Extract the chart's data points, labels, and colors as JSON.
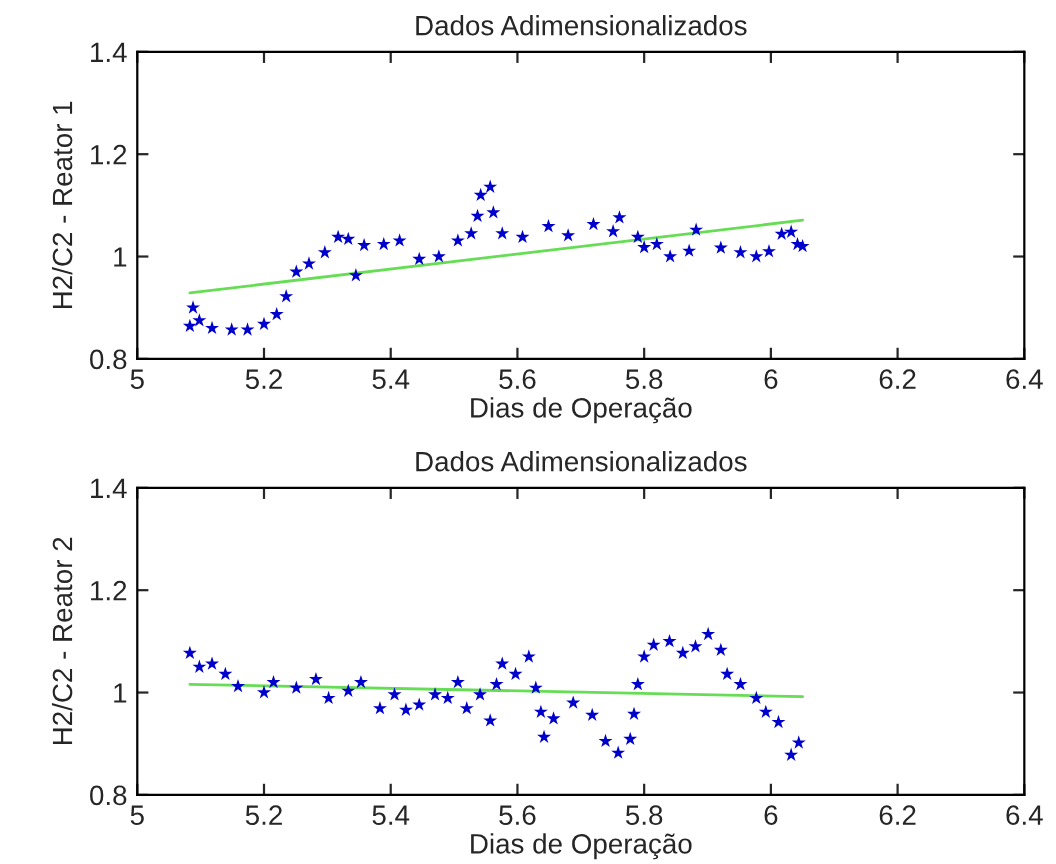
{
  "chart_data": [
    {
      "type": "scatter",
      "title": "Dados Adimensionalizados",
      "xlabel": "Dias de Operação",
      "ylabel": "H2/C2 - Reator 1",
      "xlim": [
        5,
        6.4
      ],
      "xticks": [
        5,
        5.2,
        5.4,
        5.6,
        5.8,
        6,
        6.2,
        6.4
      ],
      "ylim": [
        0.8,
        1.4
      ],
      "yticks": [
        0.8,
        1,
        1.2,
        1.4
      ],
      "grid": false,
      "legend": false,
      "series": [
        {
          "marker": "star",
          "color": "#0000cc",
          "x": [
            5.083,
            5.088,
            5.098,
            5.118,
            5.149,
            5.174,
            5.2,
            5.22,
            5.235,
            5.251,
            5.271,
            5.296,
            5.317,
            5.333,
            5.345,
            5.358,
            5.389,
            5.414,
            5.445,
            5.476,
            5.506,
            5.527,
            5.537,
            5.542,
            5.557,
            5.562,
            5.576,
            5.608,
            5.649,
            5.68,
            5.72,
            5.751,
            5.761,
            5.79,
            5.8,
            5.82,
            5.841,
            5.871,
            5.882,
            5.921,
            5.952,
            5.977,
            5.997,
            6.017,
            6.032,
            6.042,
            6.05
          ],
          "values": [
            0.864,
            0.9,
            0.875,
            0.86,
            0.857,
            0.857,
            0.868,
            0.887,
            0.922,
            0.97,
            0.986,
            1.008,
            1.038,
            1.034,
            0.963,
            1.022,
            1.024,
            1.031,
            0.995,
            1.0,
            1.031,
            1.045,
            1.079,
            1.12,
            1.136,
            1.086,
            1.045,
            1.038,
            1.059,
            1.041,
            1.063,
            1.049,
            1.076,
            1.038,
            1.018,
            1.024,
            1.0,
            1.011,
            1.052,
            1.017,
            1.008,
            1.0,
            1.01,
            1.044,
            1.048,
            1.024,
            1.02
          ]
        },
        {
          "type": "line",
          "color": "#66dd55",
          "x": [
            5.083,
            6.05
          ],
          "values": [
            0.929,
            1.071
          ]
        }
      ]
    },
    {
      "type": "scatter",
      "title": "Dados Adimensionalizados",
      "xlabel": "Dias de Operação",
      "ylabel": "H2/C2 - Reator 2",
      "xlim": [
        5,
        6.4
      ],
      "xticks": [
        5,
        5.2,
        5.4,
        5.6,
        5.8,
        6,
        6.2,
        6.4
      ],
      "ylim": [
        0.8,
        1.4
      ],
      "yticks": [
        0.8,
        1,
        1.2,
        1.4
      ],
      "grid": false,
      "legend": false,
      "series": [
        {
          "marker": "star",
          "color": "#0000cc",
          "x": [
            5.083,
            5.098,
            5.118,
            5.139,
            5.159,
            5.2,
            5.215,
            5.251,
            5.282,
            5.302,
            5.333,
            5.353,
            5.383,
            5.406,
            5.424,
            5.445,
            5.47,
            5.49,
            5.506,
            5.52,
            5.541,
            5.557,
            5.567,
            5.576,
            5.597,
            5.618,
            5.629,
            5.637,
            5.642,
            5.657,
            5.688,
            5.718,
            5.739,
            5.759,
            5.778,
            5.784,
            5.79,
            5.8,
            5.815,
            5.84,
            5.861,
            5.881,
            5.901,
            5.921,
            5.931,
            5.952,
            5.977,
            5.992,
            6.012,
            6.032,
            6.044
          ],
          "values": [
            1.077,
            1.05,
            1.056,
            1.036,
            1.012,
            1.0,
            1.02,
            1.009,
            1.026,
            0.989,
            1.003,
            1.02,
            0.969,
            0.996,
            0.966,
            0.976,
            0.996,
            0.989,
            1.02,
            0.969,
            0.996,
            0.945,
            1.016,
            1.056,
            1.036,
            1.07,
            1.009,
            0.962,
            0.913,
            0.949,
            0.98,
            0.956,
            0.905,
            0.882,
            0.909,
            0.958,
            1.016,
            1.07,
            1.093,
            1.1,
            1.077,
            1.09,
            1.114,
            1.083,
            1.036,
            1.016,
            0.989,
            0.962,
            0.942,
            0.878,
            0.902
          ]
        },
        {
          "type": "line",
          "color": "#66dd55",
          "x": [
            5.083,
            6.05
          ],
          "values": [
            1.016,
            0.992
          ]
        }
      ]
    }
  ]
}
